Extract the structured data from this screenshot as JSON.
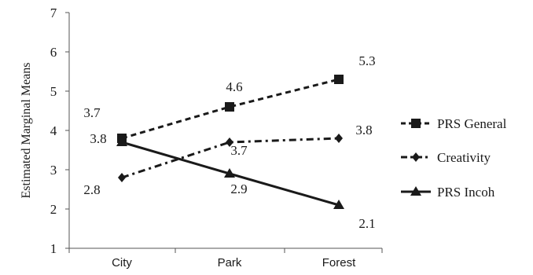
{
  "chart_data": {
    "type": "line",
    "categories": [
      "City",
      "Park",
      "Forest"
    ],
    "ylabel": "Estimated Marginal Means",
    "ylim": [
      1,
      7
    ],
    "yticks": [
      "1",
      "2",
      "3",
      "4",
      "5",
      "6",
      "7"
    ],
    "grid": false,
    "legend_position": "right",
    "series": [
      {
        "name": "PRS General",
        "values": [
          3.8,
          4.6,
          5.3
        ],
        "labels": [
          "3.8",
          "4.6",
          "5.3"
        ],
        "marker": "square",
        "line_style": "dashed",
        "color": "#1a1a1a"
      },
      {
        "name": "Creativity",
        "values": [
          2.8,
          3.7,
          3.8
        ],
        "labels": [
          "2.8",
          "3.7",
          "3.8"
        ],
        "marker": "diamond",
        "line_style": "dash-dot",
        "color": "#1a1a1a"
      },
      {
        "name": "PRS Incoh",
        "values": [
          3.7,
          2.9,
          2.1
        ],
        "labels": [
          "3.7",
          "2.9",
          "2.1"
        ],
        "marker": "triangle",
        "line_style": "solid",
        "color": "#1a1a1a"
      }
    ]
  }
}
